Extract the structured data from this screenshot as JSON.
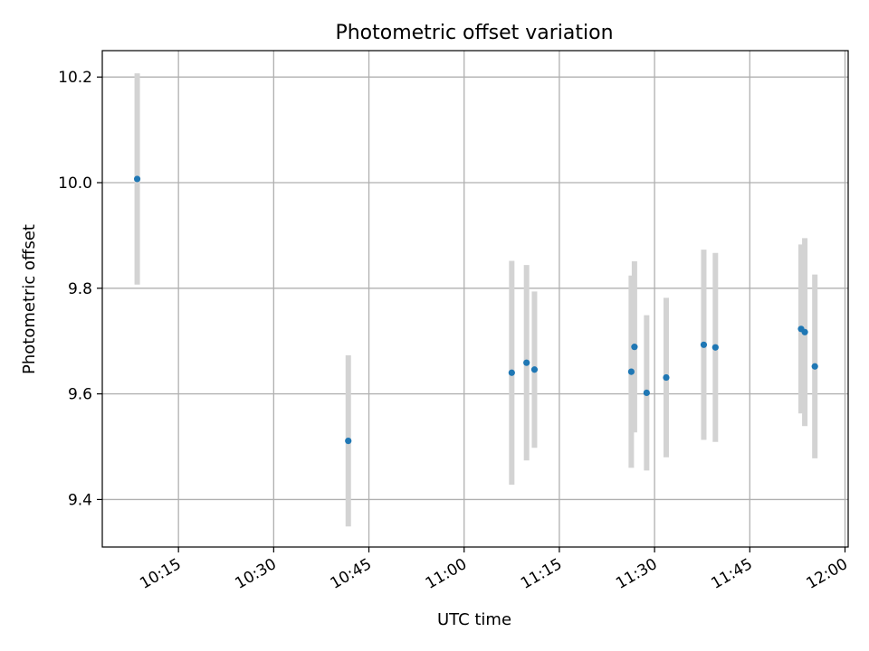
{
  "chart_data": {
    "type": "scatter",
    "title": "Photometric offset variation",
    "xlabel": "UTC time",
    "ylabel": "Photometric offset",
    "x_is_time": true,
    "xlim": [
      "10:03:00",
      "12:00:30"
    ],
    "ylim": [
      9.31,
      10.25
    ],
    "x_ticks": [
      "10:15",
      "10:30",
      "10:45",
      "11:00",
      "11:15",
      "11:30",
      "11:45",
      "12:00"
    ],
    "y_ticks": [
      9.4,
      9.6,
      9.8,
      10.0,
      10.2
    ],
    "y_tick_labels": [
      "9.4",
      "9.6",
      "9.8",
      "10.0",
      "10.2"
    ],
    "grid": true,
    "points": [
      {
        "time": "10:08:30",
        "y": 10.007,
        "err": 0.2
      },
      {
        "time": "10:41:45",
        "y": 9.511,
        "err": 0.162
      },
      {
        "time": "11:07:30",
        "y": 9.64,
        "err": 0.212
      },
      {
        "time": "11:09:50",
        "y": 9.659,
        "err": 0.185
      },
      {
        "time": "11:11:05",
        "y": 9.646,
        "err": 0.148
      },
      {
        "time": "11:26:20",
        "y": 9.642,
        "err": 0.182
      },
      {
        "time": "11:26:50",
        "y": 9.689,
        "err": 0.162
      },
      {
        "time": "11:28:45",
        "y": 9.602,
        "err": 0.147
      },
      {
        "time": "11:31:50",
        "y": 9.631,
        "err": 0.151
      },
      {
        "time": "11:37:45",
        "y": 9.693,
        "err": 0.18
      },
      {
        "time": "11:39:35",
        "y": 9.688,
        "err": 0.179
      },
      {
        "time": "11:53:05",
        "y": 9.723,
        "err": 0.16
      },
      {
        "time": "11:53:40",
        "y": 9.717,
        "err": 0.178
      },
      {
        "time": "11:55:15",
        "y": 9.652,
        "err": 0.174
      }
    ],
    "colors": {
      "point": "#1f77b4",
      "errorbar": "#d3d3d3",
      "grid": "#b0b0b0",
      "axis": "#000000"
    }
  }
}
